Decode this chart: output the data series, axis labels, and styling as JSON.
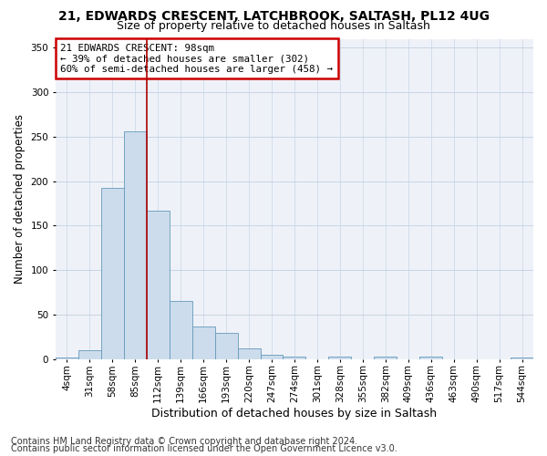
{
  "title1": "21, EDWARDS CRESCENT, LATCHBROOK, SALTASH, PL12 4UG",
  "title2": "Size of property relative to detached houses in Saltash",
  "xlabel": "Distribution of detached houses by size in Saltash",
  "ylabel": "Number of detached properties",
  "bin_labels": [
    "4sqm",
    "31sqm",
    "58sqm",
    "85sqm",
    "112sqm",
    "139sqm",
    "166sqm",
    "193sqm",
    "220sqm",
    "247sqm",
    "274sqm",
    "301sqm",
    "328sqm",
    "355sqm",
    "382sqm",
    "409sqm",
    "436sqm",
    "463sqm",
    "490sqm",
    "517sqm",
    "544sqm"
  ],
  "bar_values": [
    2,
    10,
    192,
    256,
    167,
    65,
    37,
    29,
    12,
    5,
    3,
    0,
    3,
    0,
    3,
    0,
    3,
    0,
    0,
    0,
    2
  ],
  "bar_color": "#ccdcec",
  "bar_edgecolor": "#6699bb",
  "vline_bin": 3.5,
  "vline_color": "#aa0000",
  "annotation_text": "21 EDWARDS CRESCENT: 98sqm\n← 39% of detached houses are smaller (302)\n60% of semi-detached houses are larger (458) →",
  "annotation_box_color": "white",
  "annotation_box_edgecolor": "#cc0000",
  "background_color": "#eef2f8",
  "grid_color": "#c8d4e4",
  "ylim": [
    0,
    360
  ],
  "title1_fontsize": 10,
  "title2_fontsize": 9,
  "xlabel_fontsize": 9,
  "ylabel_fontsize": 8.5,
  "tick_fontsize": 7.5,
  "footer_fontsize": 7,
  "footer1": "Contains HM Land Registry data © Crown copyright and database right 2024.",
  "footer2": "Contains public sector information licensed under the Open Government Licence v3.0."
}
